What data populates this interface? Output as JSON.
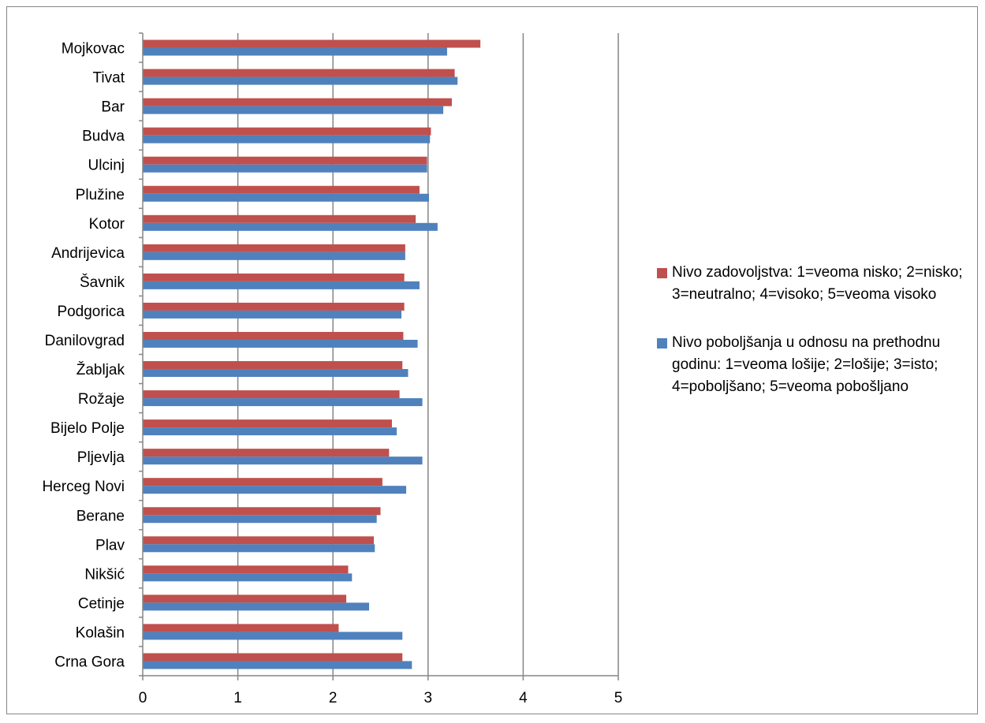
{
  "chart_data": {
    "type": "bar",
    "orientation": "horizontal",
    "categories": [
      "Mojkovac",
      "Tivat",
      "Bar",
      "Budva",
      "Ulcinj",
      "Plužine",
      "Kotor",
      "Andrijevica",
      "Šavnik",
      "Podgorica",
      "Danilovgrad",
      "Žabljak",
      "Rožaje",
      "Bijelo Polje",
      "Pljevlja",
      "Herceg Novi",
      "Berane",
      "Plav",
      "Nikšić",
      "Cetinje",
      "Kolašin",
      "Crna Gora"
    ],
    "series": [
      {
        "name": "Nivo zadovoljstva: 1=veoma nisko; 2=nisko; 3=neutralno; 4=visoko; 5=veoma visoko",
        "color": "#c0504d",
        "values": [
          3.55,
          3.28,
          3.25,
          3.03,
          2.99,
          2.91,
          2.87,
          2.76,
          2.75,
          2.75,
          2.74,
          2.73,
          2.7,
          2.62,
          2.59,
          2.52,
          2.5,
          2.43,
          2.16,
          2.14,
          2.06,
          2.73
        ]
      },
      {
        "name": "Nivo poboljšanja u odnosu na prethodnu godinu: 1=veoma lošije; 2=lošije; 3=isto; 4=poboljšano; 5=veoma pobošljano",
        "color": "#4f81bd",
        "values": [
          3.2,
          3.31,
          3.16,
          3.02,
          2.99,
          3.01,
          3.1,
          2.76,
          2.91,
          2.72,
          2.89,
          2.79,
          2.94,
          2.67,
          2.94,
          2.77,
          2.46,
          2.44,
          2.2,
          2.38,
          2.73,
          2.83
        ]
      }
    ],
    "xlim": [
      0,
      5
    ],
    "xticks": [
      "0",
      "1",
      "2",
      "3",
      "4",
      "5"
    ],
    "grid": true,
    "legend_position": "right"
  }
}
